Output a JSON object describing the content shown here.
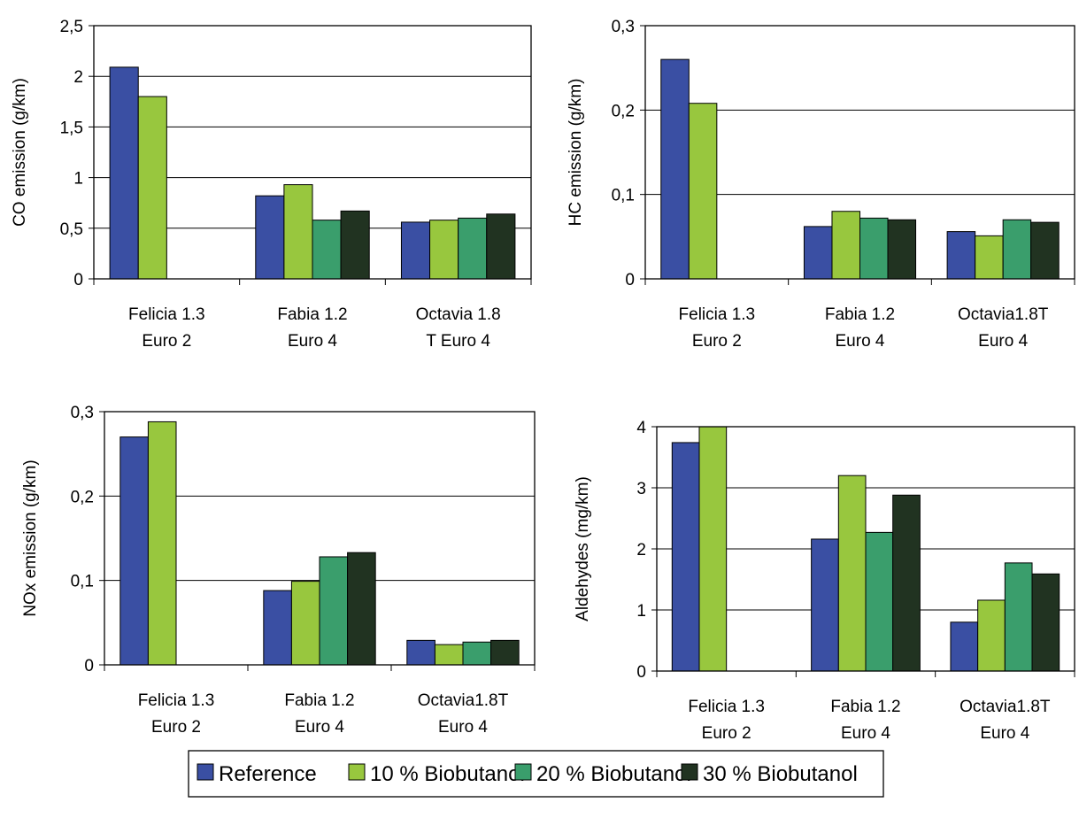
{
  "colors": {
    "Reference": "#3a4fa3",
    "10 % Biobutanol": "#98c73e",
    "20 % Biobutanol": "#3a9e6c",
    "30 % Biobutanol": "#213321"
  },
  "legend": {
    "items": [
      "Reference",
      "10 % Biobutanol",
      "20 % Biobutanol",
      "30 % Biobutanol"
    ]
  },
  "chart_data": [
    {
      "type": "bar",
      "ylabel": "CO emission (g/km)",
      "ylim": [
        0,
        2.5
      ],
      "yticks": [
        "0",
        "0,5",
        "1",
        "1,5",
        "2",
        "2,5"
      ],
      "ytick_values": [
        0,
        0.5,
        1,
        1.5,
        2,
        2.5
      ],
      "categories": [
        [
          "Felicia 1.3",
          "Euro 2"
        ],
        [
          "Fabia 1.2",
          "Euro 4"
        ],
        [
          "Octavia 1.8",
          "T Euro 4"
        ]
      ],
      "series": [
        {
          "name": "Reference",
          "values": [
            2.09,
            0.82,
            0.56
          ]
        },
        {
          "name": "10 % Biobutanol",
          "values": [
            1.8,
            0.93,
            0.58
          ]
        },
        {
          "name": "20 % Biobutanol",
          "values": [
            null,
            0.58,
            0.6
          ]
        },
        {
          "name": "30 % Biobutanol",
          "values": [
            null,
            0.67,
            0.64
          ]
        }
      ],
      "grid": true
    },
    {
      "type": "bar",
      "ylabel": "HC emission (g/km)",
      "ylim": [
        0,
        0.3
      ],
      "yticks": [
        "0",
        "0,1",
        "0,2",
        "0,3"
      ],
      "ytick_values": [
        0,
        0.1,
        0.2,
        0.3
      ],
      "categories": [
        [
          "Felicia 1.3",
          "Euro 2"
        ],
        [
          "Fabia 1.2",
          "Euro 4"
        ],
        [
          "Octavia1.8T",
          "Euro 4"
        ]
      ],
      "series": [
        {
          "name": "Reference",
          "values": [
            0.26,
            0.062,
            0.056
          ]
        },
        {
          "name": "10 % Biobutanol",
          "values": [
            0.208,
            0.08,
            0.051
          ]
        },
        {
          "name": "20 % Biobutanol",
          "values": [
            null,
            0.072,
            0.07
          ]
        },
        {
          "name": "30 % Biobutanol",
          "values": [
            null,
            0.07,
            0.067
          ]
        }
      ],
      "grid": true
    },
    {
      "type": "bar",
      "ylabel": "NOx emission (g/km)",
      "ylim": [
        0,
        0.3
      ],
      "yticks": [
        "0",
        "0,1",
        "0,2",
        "0,3"
      ],
      "ytick_values": [
        0,
        0.1,
        0.2,
        0.3
      ],
      "categories": [
        [
          "Felicia 1.3",
          "Euro 2"
        ],
        [
          "Fabia 1.2",
          "Euro 4"
        ],
        [
          "Octavia1.8T",
          "Euro 4"
        ]
      ],
      "series": [
        {
          "name": "Reference",
          "values": [
            0.27,
            0.088,
            0.029
          ]
        },
        {
          "name": "10 % Biobutanol",
          "values": [
            0.288,
            0.099,
            0.024
          ]
        },
        {
          "name": "20 % Biobutanol",
          "values": [
            null,
            0.128,
            0.027
          ]
        },
        {
          "name": "30 % Biobutanol",
          "values": [
            null,
            0.133,
            0.029
          ]
        }
      ],
      "grid": true
    },
    {
      "type": "bar",
      "ylabel": "Aldehydes (mg/km)",
      "ylim": [
        0,
        4
      ],
      "yticks": [
        "0",
        "1",
        "2",
        "3",
        "4"
      ],
      "ytick_values": [
        0,
        1,
        2,
        3,
        4
      ],
      "categories": [
        [
          "Felicia 1.3",
          "Euro 2"
        ],
        [
          "Fabia 1.2",
          "Euro 4"
        ],
        [
          "Octavia1.8T",
          "Euro 4"
        ]
      ],
      "series": [
        {
          "name": "Reference",
          "values": [
            3.74,
            2.16,
            0.8
          ]
        },
        {
          "name": "10 % Biobutanol",
          "values": [
            4.0,
            3.2,
            1.16
          ]
        },
        {
          "name": "20 % Biobutanol",
          "values": [
            null,
            2.27,
            1.77
          ]
        },
        {
          "name": "30 % Biobutanol",
          "values": [
            null,
            2.88,
            1.59
          ]
        }
      ],
      "grid": true
    }
  ]
}
